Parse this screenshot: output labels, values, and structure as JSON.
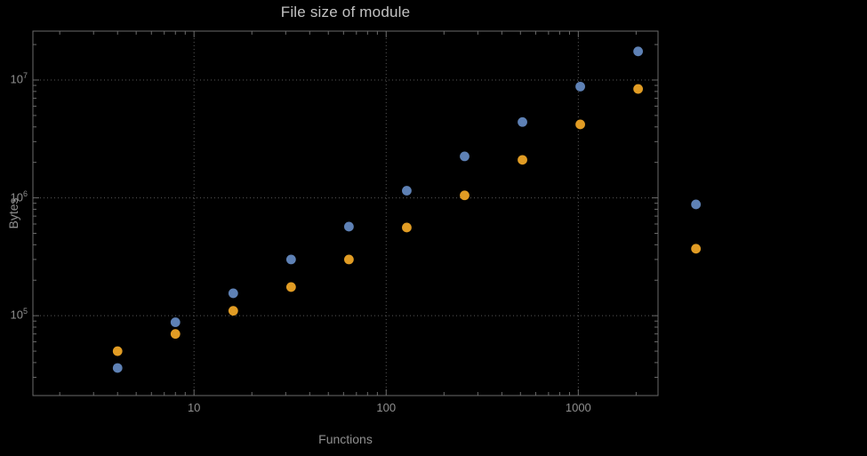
{
  "chart_data": {
    "type": "scatter",
    "title": "File size of module",
    "xlabel": "Functions",
    "ylabel": "Bytes",
    "x_scale": "log",
    "y_scale": "log",
    "x": [
      4,
      8,
      16,
      32,
      64,
      128,
      256,
      512,
      1024,
      2048,
      4096
    ],
    "series": [
      {
        "name": "series-1-blue",
        "color": "#5e81b5",
        "values": [
          36000,
          88000,
          155000,
          300000,
          570000,
          1150000,
          2250000,
          4400000,
          8800000,
          17500000,
          880000
        ]
      },
      {
        "name": "series-2-orange",
        "color": "#e19c24",
        "values": [
          50000,
          70000,
          110000,
          175000,
          300000,
          560000,
          1050000,
          2100000,
          4200000,
          8400000,
          370000
        ]
      }
    ],
    "xlim": [
      1.45,
      2600
    ],
    "ylim": [
      21000,
      26000000
    ],
    "x_ticks": [
      10,
      100,
      1000
    ],
    "y_ticks": [
      100000,
      1000000,
      10000000
    ],
    "grid": true,
    "legend": "none",
    "colors": {
      "background": "#000000",
      "frame": "#6a6a6a",
      "grid": "#585858",
      "tick_text": "#8f8f8f",
      "label_text": "#8f8f8f",
      "title_text": "#c2c2c2"
    }
  }
}
